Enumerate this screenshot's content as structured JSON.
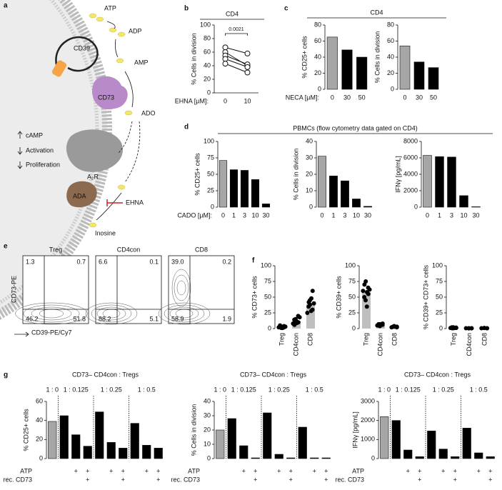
{
  "panels": [
    "a",
    "b",
    "c",
    "d",
    "e",
    "f",
    "g"
  ],
  "diagram": {
    "labels": [
      "ATP",
      "ADP",
      "CD39",
      "AMP",
      "CD73",
      "ADO",
      "cAMP",
      "Activation",
      "Proliferation",
      "A₂R",
      "ADA",
      "EHNA",
      "Inosine"
    ]
  },
  "flow": {
    "x_label": "CD39-PE/Cy7",
    "y_label": "CD73-PE",
    "plots": [
      {
        "title": "Treg",
        "quadrants": [
          "1.3",
          "0.7",
          "46.2",
          "51.8"
        ]
      },
      {
        "title": "CD4con",
        "quadrants": [
          "6.6",
          "0.1",
          "88.2",
          "5.1"
        ]
      },
      {
        "title": "CD8",
        "quadrants": [
          "39.0",
          "0.2",
          "58.9",
          "1.9"
        ]
      }
    ]
  },
  "chart_data": [
    {
      "type": "paired",
      "title": "CD4",
      "ylabel": "% Cells in division",
      "xlabel": "EHNA [µM]:",
      "categories": [
        "0",
        "10"
      ],
      "annotation": "0.0021",
      "series": [
        {
          "values": [
            67,
            58
          ]
        },
        {
          "values": [
            60,
            40
          ]
        },
        {
          "values": [
            55,
            42
          ]
        },
        {
          "values": [
            50,
            38
          ]
        },
        {
          "values": [
            43,
            30
          ]
        }
      ],
      "ylim": [
        0,
        100
      ],
      "yticks": [
        0,
        20,
        40,
        60,
        80,
        100
      ]
    },
    {
      "type": "bar",
      "title": "CD4",
      "ylabel": "% CD25+ cells",
      "xlabel": "NECA [µM]:",
      "categories": [
        "0",
        "30",
        "50"
      ],
      "values": [
        65,
        49,
        40
      ],
      "colors": [
        "#a6a6a6",
        "#000000",
        "#000000"
      ],
      "ylim": [
        0,
        80
      ],
      "yticks": [
        0,
        20,
        40,
        60,
        80
      ]
    },
    {
      "type": "bar",
      "ylabel": "% Cells in division",
      "categories": [
        "0",
        "30",
        "50"
      ],
      "values": [
        54,
        34,
        27
      ],
      "colors": [
        "#a6a6a6",
        "#000000",
        "#000000"
      ],
      "ylim": [
        0,
        80
      ],
      "yticks": [
        0,
        20,
        40,
        60,
        80
      ]
    },
    {
      "type": "bar",
      "title": "PBMCs (flow cytometry data gated on CD4)",
      "ylabel": "% CD25+ cells",
      "xlabel": "CADO [µM]:",
      "categories": [
        "0",
        "1",
        "3",
        "10",
        "30"
      ],
      "values": [
        71,
        57,
        56,
        42,
        5
      ],
      "colors": [
        "#a6a6a6",
        "#000000",
        "#000000",
        "#000000",
        "#000000"
      ],
      "ylim": [
        0,
        100
      ],
      "yticks": [
        0,
        25,
        50,
        75,
        100
      ]
    },
    {
      "type": "bar",
      "ylabel": "% Cells in division",
      "categories": [
        "0",
        "1",
        "3",
        "10",
        "30"
      ],
      "values": [
        31,
        19,
        16,
        5,
        0.5
      ],
      "colors": [
        "#a6a6a6",
        "#000000",
        "#000000",
        "#000000",
        "#000000"
      ],
      "ylim": [
        0,
        40
      ],
      "yticks": [
        0,
        10,
        20,
        30,
        40
      ]
    },
    {
      "type": "bar",
      "ylabel": "IFNγ [pg/mL]",
      "categories": [
        "0",
        "1",
        "3",
        "10",
        "30"
      ],
      "values": [
        6300,
        6150,
        6100,
        1400,
        50
      ],
      "colors": [
        "#a6a6a6",
        "#000000",
        "#000000",
        "#000000",
        "#000000"
      ],
      "ylim": [
        0,
        8000
      ],
      "yticks": [
        0,
        2000,
        4000,
        6000,
        8000
      ]
    },
    {
      "type": "dotbar",
      "ylabel": "% CD73+ cells",
      "categories": [
        "Treg",
        "CD4con",
        "CD8"
      ],
      "values": [
        3,
        12,
        39
      ],
      "color": "#bfbfbf",
      "points": [
        [
          2,
          3,
          1,
          4,
          2,
          3,
          5,
          2,
          1,
          3
        ],
        [
          8,
          12,
          15,
          10,
          20,
          6,
          14,
          9,
          11,
          18
        ],
        [
          25,
          38,
          45,
          60,
          30,
          42,
          35,
          48,
          28,
          40
        ]
      ],
      "ylim": [
        0,
        100
      ],
      "yticks": [
        0,
        25,
        50,
        75,
        100
      ]
    },
    {
      "type": "dotbar",
      "ylabel": "% CD39+ cells",
      "categories": [
        "Treg",
        "CD4con",
        "CD8"
      ],
      "values": [
        58,
        6,
        3
      ],
      "color": "#bfbfbf",
      "points": [
        [
          60,
          75,
          45,
          55,
          65,
          70,
          50,
          58,
          35,
          62
        ],
        [
          5,
          7,
          4,
          8,
          6,
          5,
          7
        ],
        [
          2,
          3,
          4,
          3,
          2,
          3
        ]
      ],
      "ylim": [
        0,
        100
      ],
      "yticks": [
        0,
        25,
        50,
        75,
        100
      ]
    },
    {
      "type": "dotbar",
      "ylabel": "% CD39+ CD73+ cells",
      "categories": [
        "Treg",
        "CD4con",
        "CD8"
      ],
      "values": [
        1,
        0.5,
        0.5
      ],
      "color": "#bfbfbf",
      "points": [
        [
          1,
          2,
          0.5,
          1.5,
          1,
          0.5,
          2,
          1
        ],
        [
          0.5,
          0.3,
          0.6,
          0.4,
          0.5
        ],
        [
          0.5,
          1,
          0.8,
          0.6,
          0.4
        ]
      ],
      "ylim": [
        0,
        100
      ],
      "yticks": [
        0,
        25,
        50,
        75,
        100
      ]
    },
    {
      "type": "bar",
      "title": "CD73– CD4con : Tregs",
      "ylabel": "% CD25+ cells",
      "groups": [
        "1 : 0",
        "1 : 0.125",
        "1 : 0.25",
        "1 : 0.5"
      ],
      "values": [
        39,
        45,
        25,
        13,
        49,
        17,
        11,
        37,
        14,
        11
      ],
      "colors": [
        "#a6a6a6",
        "#000",
        "#000",
        "#000",
        "#000",
        "#000",
        "#000",
        "#000",
        "#000",
        "#000"
      ],
      "rows": [
        {
          "name": "ATP",
          "marks": [
            null,
            null,
            "+",
            "+",
            null,
            "+",
            "+",
            null,
            "+",
            "+"
          ]
        },
        {
          "name": "rec. CD73",
          "marks": [
            null,
            null,
            null,
            "+",
            null,
            null,
            "+",
            null,
            null,
            "+"
          ]
        }
      ],
      "ylim": [
        0,
        60
      ],
      "yticks": [
        0,
        20,
        40,
        60
      ]
    },
    {
      "type": "bar",
      "title": "CD73– CD4con : Tregs",
      "ylabel": "% Cells in division",
      "groups": [
        "1 : 0",
        "1 : 0.125",
        "1 : 0.25",
        "1 : 0.5"
      ],
      "values": [
        20,
        28,
        9,
        0.5,
        32,
        3,
        0.5,
        22,
        0.5,
        0.5
      ],
      "colors": [
        "#a6a6a6",
        "#000",
        "#000",
        "#000",
        "#000",
        "#000",
        "#000",
        "#000",
        "#000",
        "#000"
      ],
      "rows": [
        {
          "name": "ATP",
          "marks": [
            null,
            null,
            "+",
            "+",
            null,
            "+",
            "+",
            null,
            "+",
            "+"
          ]
        },
        {
          "name": "rec. CD73",
          "marks": [
            null,
            null,
            null,
            "+",
            null,
            null,
            "+",
            null,
            null,
            "+"
          ]
        }
      ],
      "ylim": [
        0,
        40
      ],
      "yticks": [
        0,
        10,
        20,
        30,
        40
      ]
    },
    {
      "type": "bar",
      "title": "CD73– CD4con : Tregs",
      "ylabel": "IFNγ [pg/mL]",
      "groups": [
        "1 : 0",
        "1 : 0.125",
        "1 : 0.25",
        "1 : 0.5"
      ],
      "values": [
        2200,
        2000,
        450,
        100,
        1450,
        500,
        100,
        1600,
        300,
        100
      ],
      "colors": [
        "#a6a6a6",
        "#000",
        "#000",
        "#000",
        "#000",
        "#000",
        "#000",
        "#000",
        "#000",
        "#000"
      ],
      "rows": [
        {
          "name": "ATP",
          "marks": [
            null,
            null,
            "+",
            "+",
            null,
            "+",
            "+",
            null,
            "+",
            "+"
          ]
        },
        {
          "name": "rec. CD73",
          "marks": [
            null,
            null,
            null,
            "+",
            null,
            null,
            "+",
            null,
            null,
            "+"
          ]
        }
      ],
      "ylim": [
        0,
        3000
      ],
      "yticks": [
        0,
        1000,
        2000,
        3000
      ]
    }
  ]
}
